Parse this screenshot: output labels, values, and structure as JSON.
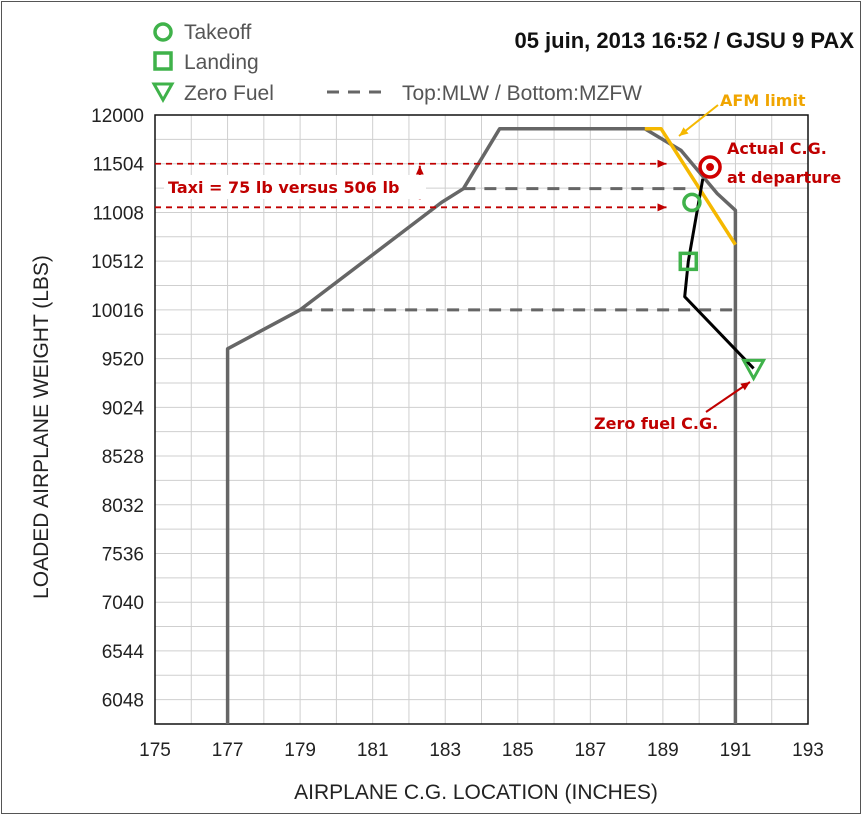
{
  "chart_data": {
    "type": "line",
    "title": "05 juin, 2013 16:52 / GJSU 9 PAX",
    "xlabel": "AIRPLANE C.G. LOCATION (INCHES)",
    "ylabel": "LOADED AIRPLANE WEIGHT (LBS)",
    "xlim": [
      175,
      193
    ],
    "ylim": [
      5800,
      12000
    ],
    "xticks": [
      "175",
      "177",
      "179",
      "181",
      "183",
      "185",
      "187",
      "189",
      "191",
      "193"
    ],
    "yticks": [
      "12000",
      "11504",
      "11008",
      "10512",
      "10016",
      "9520",
      "9024",
      "8528",
      "8032",
      "7536",
      "7040",
      "6544",
      "6048"
    ],
    "grid": true,
    "legend": {
      "placement": "top-left",
      "entries": [
        {
          "label": "Takeoff",
          "symbol": "circle",
          "color": "#3fb24a"
        },
        {
          "label": "Landing",
          "symbol": "square",
          "color": "#3fb24a"
        },
        {
          "label": "Zero Fuel",
          "symbol": "triangle-down",
          "color": "#3fb24a"
        },
        {
          "label": "Top:MLW / Bottom:MZFW",
          "symbol": "dashed-line",
          "color": "#666666"
        }
      ]
    },
    "envelope": {
      "color": "#666666",
      "points": [
        [
          177,
          5800
        ],
        [
          177,
          9620
        ],
        [
          179,
          10016
        ],
        [
          182.9,
          11110
        ],
        [
          183.5,
          11250
        ],
        [
          184.5,
          11860
        ],
        [
          188.5,
          11860
        ],
        [
          189.5,
          11640
        ],
        [
          190.5,
          11200
        ],
        [
          191,
          11030
        ],
        [
          191,
          5800
        ]
      ]
    },
    "limit_lines": [
      {
        "name": "MLW",
        "x": [
          183.5,
          189.8
        ],
        "y": 11250
      },
      {
        "name": "MZFW",
        "x": [
          179,
          191
        ],
        "y": 10016
      }
    ],
    "cg_path": {
      "color": "#000000",
      "points": [
        [
          191.5,
          9420
        ],
        [
          189.6,
          10150
        ],
        [
          189.7,
          10510
        ],
        [
          190.1,
          11350
        ]
      ]
    },
    "markers": [
      {
        "name": "Takeoff",
        "x": 189.8,
        "y": 11110,
        "symbol": "circle"
      },
      {
        "name": "Landing",
        "x": 189.7,
        "y": 10510,
        "symbol": "square"
      },
      {
        "name": "Zero Fuel",
        "x": 191.5,
        "y": 9420,
        "symbol": "triangle-down"
      }
    ],
    "afm_limit": {
      "color": "#f5b800",
      "points": [
        [
          188.5,
          11860
        ],
        [
          188.95,
          11860
        ],
        [
          191,
          10680
        ]
      ]
    },
    "actual_cg": {
      "x": 190.3,
      "y": 11470,
      "color": "#d00000"
    },
    "taxi_lines": {
      "y_top": 11504,
      "y_bottom": 11060,
      "x_from": 175,
      "x_to": 189.1,
      "color": "#c00000"
    },
    "annotations": {
      "afm_limit": "AFM limit",
      "actual_cg_line1": "Actual C.G.",
      "actual_cg_line2": "at departure",
      "taxi": "Taxi = 75 lb versus 506 lb",
      "zero_fuel_cg": "Zero fuel C.G."
    }
  }
}
